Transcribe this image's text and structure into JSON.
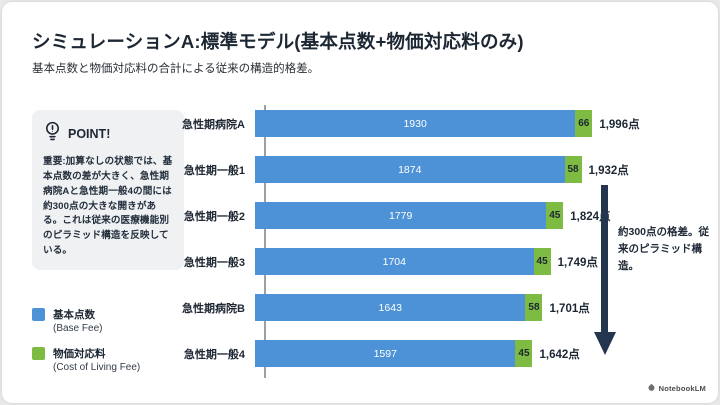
{
  "slide": {
    "title": "シミュレーションA:標準モデル(基本点数+物価対応料のみ)",
    "subtitle": "基本点数と物価対応料の合計による従来の構造的格差。"
  },
  "point_box": {
    "heading": "POINT!",
    "icon": "lightbulb-exclamation-icon",
    "body": "重要:加算なしの状態では、基本点数の差が大きく、急性期病院Aと急性期一般4の間には約300点の大きな開きがある。これは従来の医療機能別のピラミッド構造を反映している。"
  },
  "legend": {
    "items": [
      {
        "label": "基本点数",
        "sublabel": "(Base Fee)",
        "color": "#4d92d6"
      },
      {
        "label": "物価対応料",
        "sublabel": "(Cost of Living Fee)",
        "color": "#7dbb42"
      }
    ]
  },
  "chart_data": {
    "type": "bar",
    "orientation": "horizontal",
    "stacked": true,
    "grid": false,
    "legend_position": "left",
    "categories": [
      "急性期病院A",
      "急性期一般1",
      "急性期一般2",
      "急性期一般3",
      "急性期病院B",
      "急性期一般4"
    ],
    "series": [
      {
        "name": "基本点数 (Base Fee)",
        "color": "#4d92d6",
        "values": [
          1930,
          1874,
          1779,
          1704,
          1643,
          1597
        ]
      },
      {
        "name": "物価対応料 (Cost of Living Fee)",
        "color": "#7dbb42",
        "values": [
          66,
          58,
          45,
          45,
          58,
          45
        ]
      }
    ],
    "totals": [
      1996,
      1932,
      1824,
      1749,
      1701,
      1642
    ],
    "total_labels": [
      "1,996点",
      "1,932点",
      "1,824点",
      "1,749点",
      "1,701点",
      "1,642点"
    ],
    "xlim": [
      0,
      2000
    ],
    "value_unit": "点"
  },
  "annotation": {
    "text": "約300点の格差。従来のピラミッド構造。",
    "arrow_direction": "down",
    "arrow_color": "#24364e"
  },
  "footer": {
    "brand": "NotebookLM"
  },
  "colors": {
    "base_fee": "#4d92d6",
    "cost_fee": "#7dbb42",
    "title_text": "#1c2733",
    "bar_value_on_blue": "#ffffff",
    "bar_value_on_green": "#1c2733"
  }
}
